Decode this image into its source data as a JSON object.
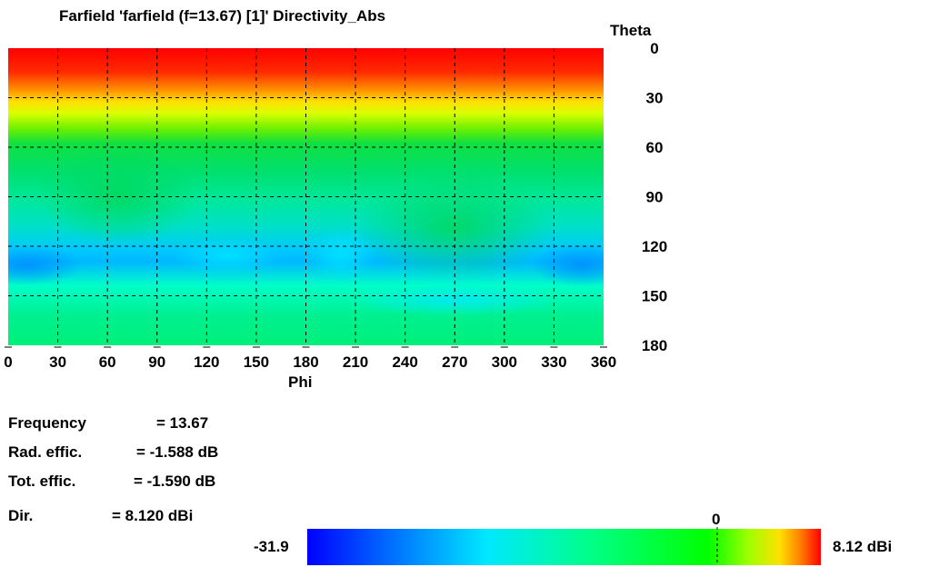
{
  "chart_data": {
    "type": "heatmap",
    "title": "Farfield 'farfield (f=13.67) [1]' Directivity_Abs",
    "xlabel": "Phi",
    "ylabel": "Theta",
    "x_ticks": [
      "0",
      "30",
      "60",
      "90",
      "120",
      "150",
      "180",
      "210",
      "240",
      "270",
      "300",
      "330",
      "360"
    ],
    "y_ticks": [
      "0",
      "30",
      "60",
      "90",
      "120",
      "150",
      "180"
    ],
    "xlim": [
      0,
      360
    ],
    "ylim": [
      0,
      180
    ],
    "grid": true,
    "colorbar": {
      "min_label": "-31.9",
      "max_label": "8.12 dBi",
      "marker_label": "0",
      "min": -31.9,
      "max": 8.12,
      "marker": 0
    },
    "colors": {
      "scale": [
        "#0000ff",
        "#0088ff",
        "#00ffff",
        "#00ff88",
        "#00ff00",
        "#88ff00",
        "#ffff00",
        "#ff8800",
        "#ff0000"
      ]
    }
  },
  "info": {
    "frequency": {
      "label": "Frequency",
      "value": "= 13.67"
    },
    "rad_effic": {
      "label": "Rad. effic.",
      "value": "= -1.588 dB"
    },
    "tot_effic": {
      "label": "Tot. effic.",
      "value": "= -1.590 dB"
    },
    "dir": {
      "label": "Dir.",
      "value": "= 8.120 dBi"
    }
  }
}
